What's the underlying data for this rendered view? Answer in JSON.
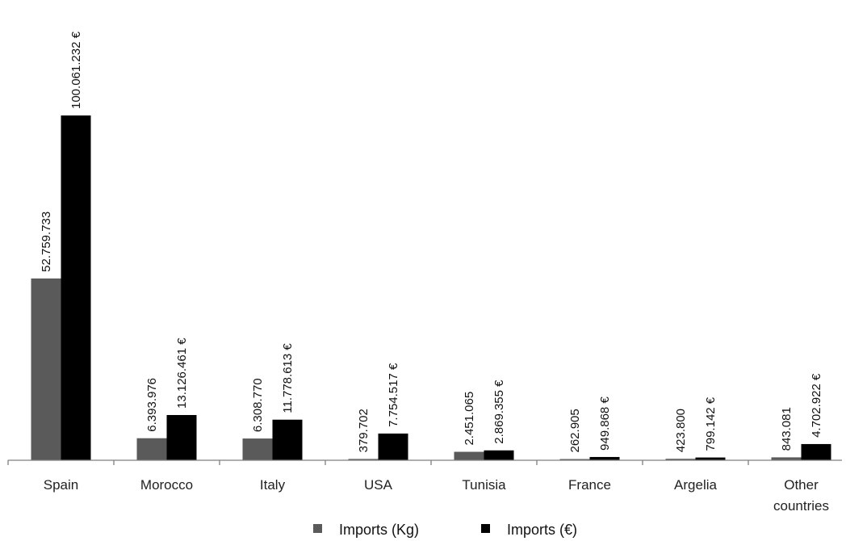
{
  "chart_data": {
    "type": "bar",
    "categories": [
      "Spain",
      "Morocco",
      "Italy",
      "USA",
      "Tunisia",
      "France",
      "Argelia",
      "Other countries"
    ],
    "series": [
      {
        "name": "Imports (Kg)",
        "color": "#5a5a5a",
        "values": [
          52759733,
          6393976,
          6308770,
          379702,
          2451065,
          262905,
          423800,
          843081
        ],
        "labels": [
          "52.759.733",
          "6.393.976",
          "6.308.770",
          "379.702",
          "2.451.065",
          "262.905",
          "423.800",
          "843.081"
        ]
      },
      {
        "name": "Imports (€)",
        "color": "#000000",
        "values": [
          100061232,
          13126461,
          11778613,
          7754517,
          2869355,
          949868,
          799142,
          4702922
        ],
        "labels": [
          "100.061.232 €",
          "13.126.461 €",
          "11.778.613 €",
          "7.754.517 €",
          "2.869.355 €",
          "949.868 €",
          "799.142 €",
          "4.702.922 €"
        ]
      }
    ],
    "ylim": [
      0,
      100061232
    ],
    "grid": false,
    "legend_position": "bottom"
  }
}
